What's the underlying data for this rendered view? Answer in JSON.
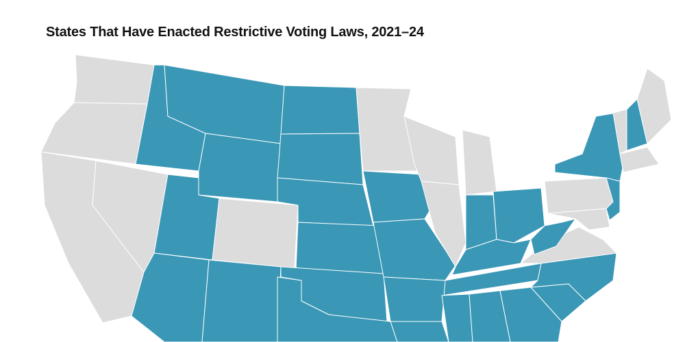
{
  "title": "States That Have Enacted Restrictive Voting Laws, 2021–24"
}
